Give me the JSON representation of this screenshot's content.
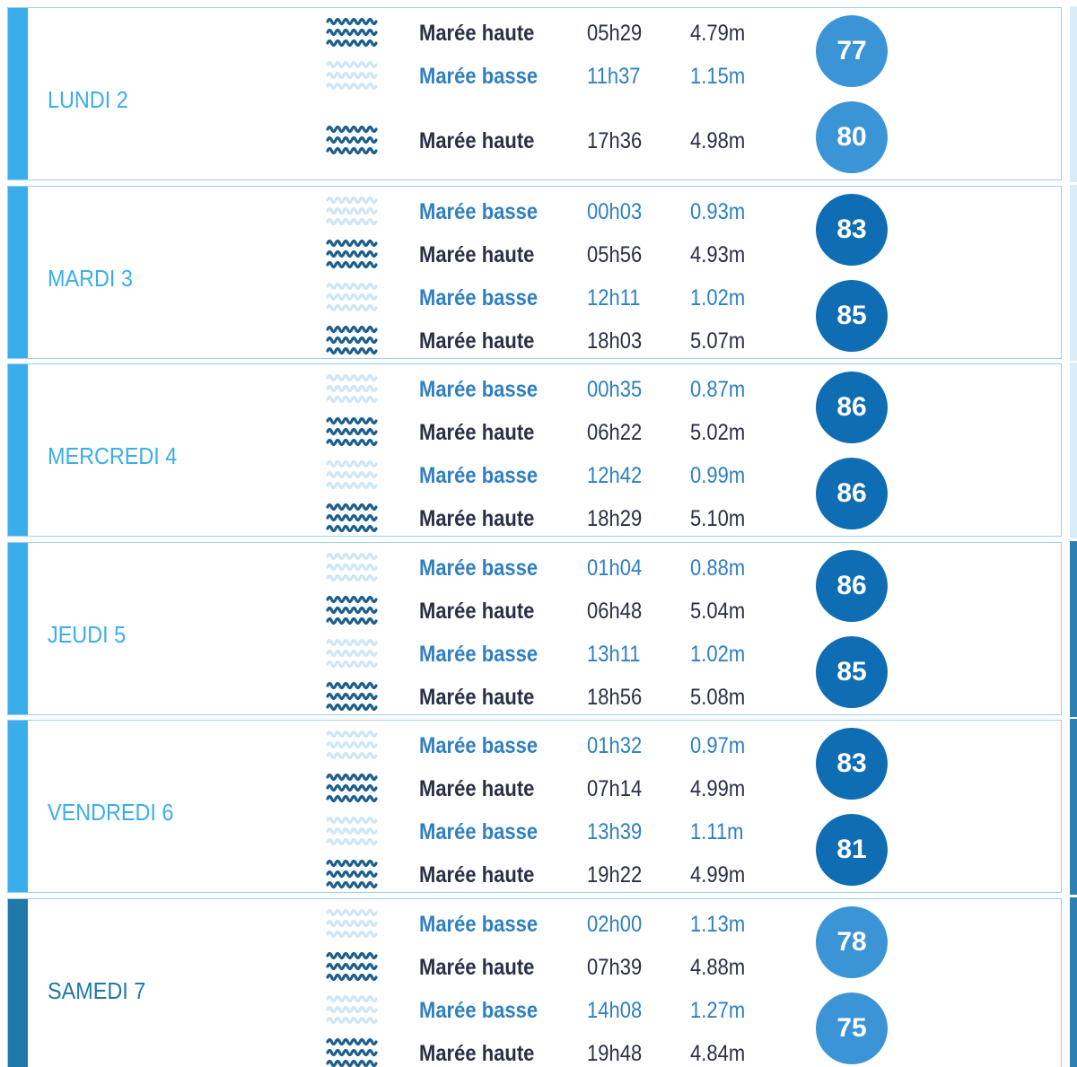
{
  "days": [
    {
      "label": "LUNDI 2",
      "color": "#3aaeea",
      "tides": [
        {
          "type": "Marée haute",
          "time": "05h29",
          "height": "4.79m",
          "color": "#2a2f45",
          "icon_color": "#1d5f8c"
        },
        {
          "type": "Marée basse",
          "time": "11h37",
          "height": "1.15m",
          "color": "#2f7fc1",
          "icon_color": "#cfe6f5"
        },
        {
          "type": "Marée haute",
          "time": "17h36",
          "height": "4.98m",
          "color": "#2a2f45",
          "icon_color": "#1d5f8c"
        }
      ],
      "coefficients": [
        {
          "value": 77,
          "color": "#3a94d6"
        },
        {
          "value": 80,
          "color": "#3a94d6"
        }
      ]
    },
    {
      "label": "MARDI 3",
      "color": "#3aaeea",
      "tides": [
        {
          "type": "Marée basse",
          "time": "00h03",
          "height": "0.93m",
          "color": "#2f7fc1",
          "icon_color": "#cfe6f5"
        },
        {
          "type": "Marée haute",
          "time": "05h56",
          "height": "4.93m",
          "color": "#2a2f45",
          "icon_color": "#1d5f8c"
        },
        {
          "type": "Marée basse",
          "time": "12h11",
          "height": "1.02m",
          "color": "#2f7fc1",
          "icon_color": "#cfe6f5"
        },
        {
          "type": "Marée haute",
          "time": "18h03",
          "height": "5.07m",
          "color": "#2a2f45",
          "icon_color": "#1d5f8c"
        }
      ],
      "coefficients": [
        {
          "value": 83,
          "color": "#0f6db4"
        },
        {
          "value": 85,
          "color": "#0f6db4"
        }
      ]
    },
    {
      "label": "MERCREDI 4",
      "color": "#3aaeea",
      "tides": [
        {
          "type": "Marée basse",
          "time": "00h35",
          "height": "0.87m",
          "color": "#2f7fc1",
          "icon_color": "#cfe6f5"
        },
        {
          "type": "Marée haute",
          "time": "06h22",
          "height": "5.02m",
          "color": "#2a2f45",
          "icon_color": "#1d5f8c"
        },
        {
          "type": "Marée basse",
          "time": "12h42",
          "height": "0.99m",
          "color": "#2f7fc1",
          "icon_color": "#cfe6f5"
        },
        {
          "type": "Marée haute",
          "time": "18h29",
          "height": "5.10m",
          "color": "#2a2f45",
          "icon_color": "#1d5f8c"
        }
      ],
      "coefficients": [
        {
          "value": 86,
          "color": "#0f6db4"
        },
        {
          "value": 86,
          "color": "#0f6db4"
        }
      ]
    },
    {
      "label": "JEUDI 5",
      "color": "#3aaeea",
      "tides": [
        {
          "type": "Marée basse",
          "time": "01h04",
          "height": "0.88m",
          "color": "#2f7fc1",
          "icon_color": "#cfe6f5"
        },
        {
          "type": "Marée haute",
          "time": "06h48",
          "height": "5.04m",
          "color": "#2a2f45",
          "icon_color": "#1d5f8c"
        },
        {
          "type": "Marée basse",
          "time": "13h11",
          "height": "1.02m",
          "color": "#2f7fc1",
          "icon_color": "#cfe6f5"
        },
        {
          "type": "Marée haute",
          "time": "18h56",
          "height": "5.08m",
          "color": "#2a2f45",
          "icon_color": "#1d5f8c"
        }
      ],
      "coefficients": [
        {
          "value": 86,
          "color": "#0f6db4"
        },
        {
          "value": 85,
          "color": "#0f6db4"
        }
      ]
    },
    {
      "label": "VENDREDI 6",
      "color": "#3aaeea",
      "tides": [
        {
          "type": "Marée basse",
          "time": "01h32",
          "height": "0.97m",
          "color": "#2f7fc1",
          "icon_color": "#cfe6f5"
        },
        {
          "type": "Marée haute",
          "time": "07h14",
          "height": "4.99m",
          "color": "#2a2f45",
          "icon_color": "#1d5f8c"
        },
        {
          "type": "Marée basse",
          "time": "13h39",
          "height": "1.11m",
          "color": "#2f7fc1",
          "icon_color": "#cfe6f5"
        },
        {
          "type": "Marée haute",
          "time": "19h22",
          "height": "4.99m",
          "color": "#2a2f45",
          "icon_color": "#1d5f8c"
        }
      ],
      "coefficients": [
        {
          "value": 83,
          "color": "#0f6db4"
        },
        {
          "value": 81,
          "color": "#0f6db4"
        }
      ]
    },
    {
      "label": "SAMEDI 7",
      "color": "#1f78a8",
      "tides": [
        {
          "type": "Marée basse",
          "time": "02h00",
          "height": "1.13m",
          "color": "#2f7fc1",
          "icon_color": "#cfe6f5"
        },
        {
          "type": "Marée haute",
          "time": "07h39",
          "height": "4.88m",
          "color": "#2a2f45",
          "icon_color": "#1d5f8c"
        },
        {
          "type": "Marée basse",
          "time": "14h08",
          "height": "1.27m",
          "color": "#2f7fc1",
          "icon_color": "#cfe6f5"
        },
        {
          "type": "Marée haute",
          "time": "19h48",
          "height": "4.84m",
          "color": "#2a2f45",
          "icon_color": "#1d5f8c"
        }
      ],
      "coefficients": [
        {
          "value": 78,
          "color": "#3a94d6"
        },
        {
          "value": 75,
          "color": "#3a94d6"
        }
      ]
    }
  ]
}
